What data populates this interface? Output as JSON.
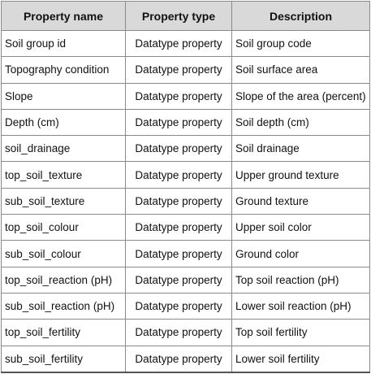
{
  "table": {
    "headers": [
      "Property name",
      "Property type",
      "Description"
    ],
    "rows": [
      [
        "Soil group id",
        "Datatype property",
        "Soil group code"
      ],
      [
        "Topography condition",
        "Datatype property",
        "Soil surface area"
      ],
      [
        "Slope",
        "Datatype property",
        "Slope of the area (percent)"
      ],
      [
        "Depth (cm)",
        "Datatype property",
        "Soil depth (cm)"
      ],
      [
        "soil_drainage",
        "Datatype property",
        "Soil drainage"
      ],
      [
        "top_soil_texture",
        "Datatype property",
        "Upper ground texture"
      ],
      [
        "sub_soil_texture",
        "Datatype property",
        "Ground texture"
      ],
      [
        "top_soil_colour",
        "Datatype property",
        "Upper soil color"
      ],
      [
        "sub_soil_colour",
        "Datatype property",
        "Ground color"
      ],
      [
        "top_soil_reaction (pH)",
        "Datatype property",
        "Top soil reaction (pH)"
      ],
      [
        "sub_soil_reaction (pH)",
        "Datatype property",
        "Lower soil reaction (pH)"
      ],
      [
        "top_soil_fertility",
        "Datatype property",
        "Top soil fertility"
      ],
      [
        "sub_soil_fertility",
        "Datatype property",
        "Lower soil fertility"
      ]
    ]
  }
}
